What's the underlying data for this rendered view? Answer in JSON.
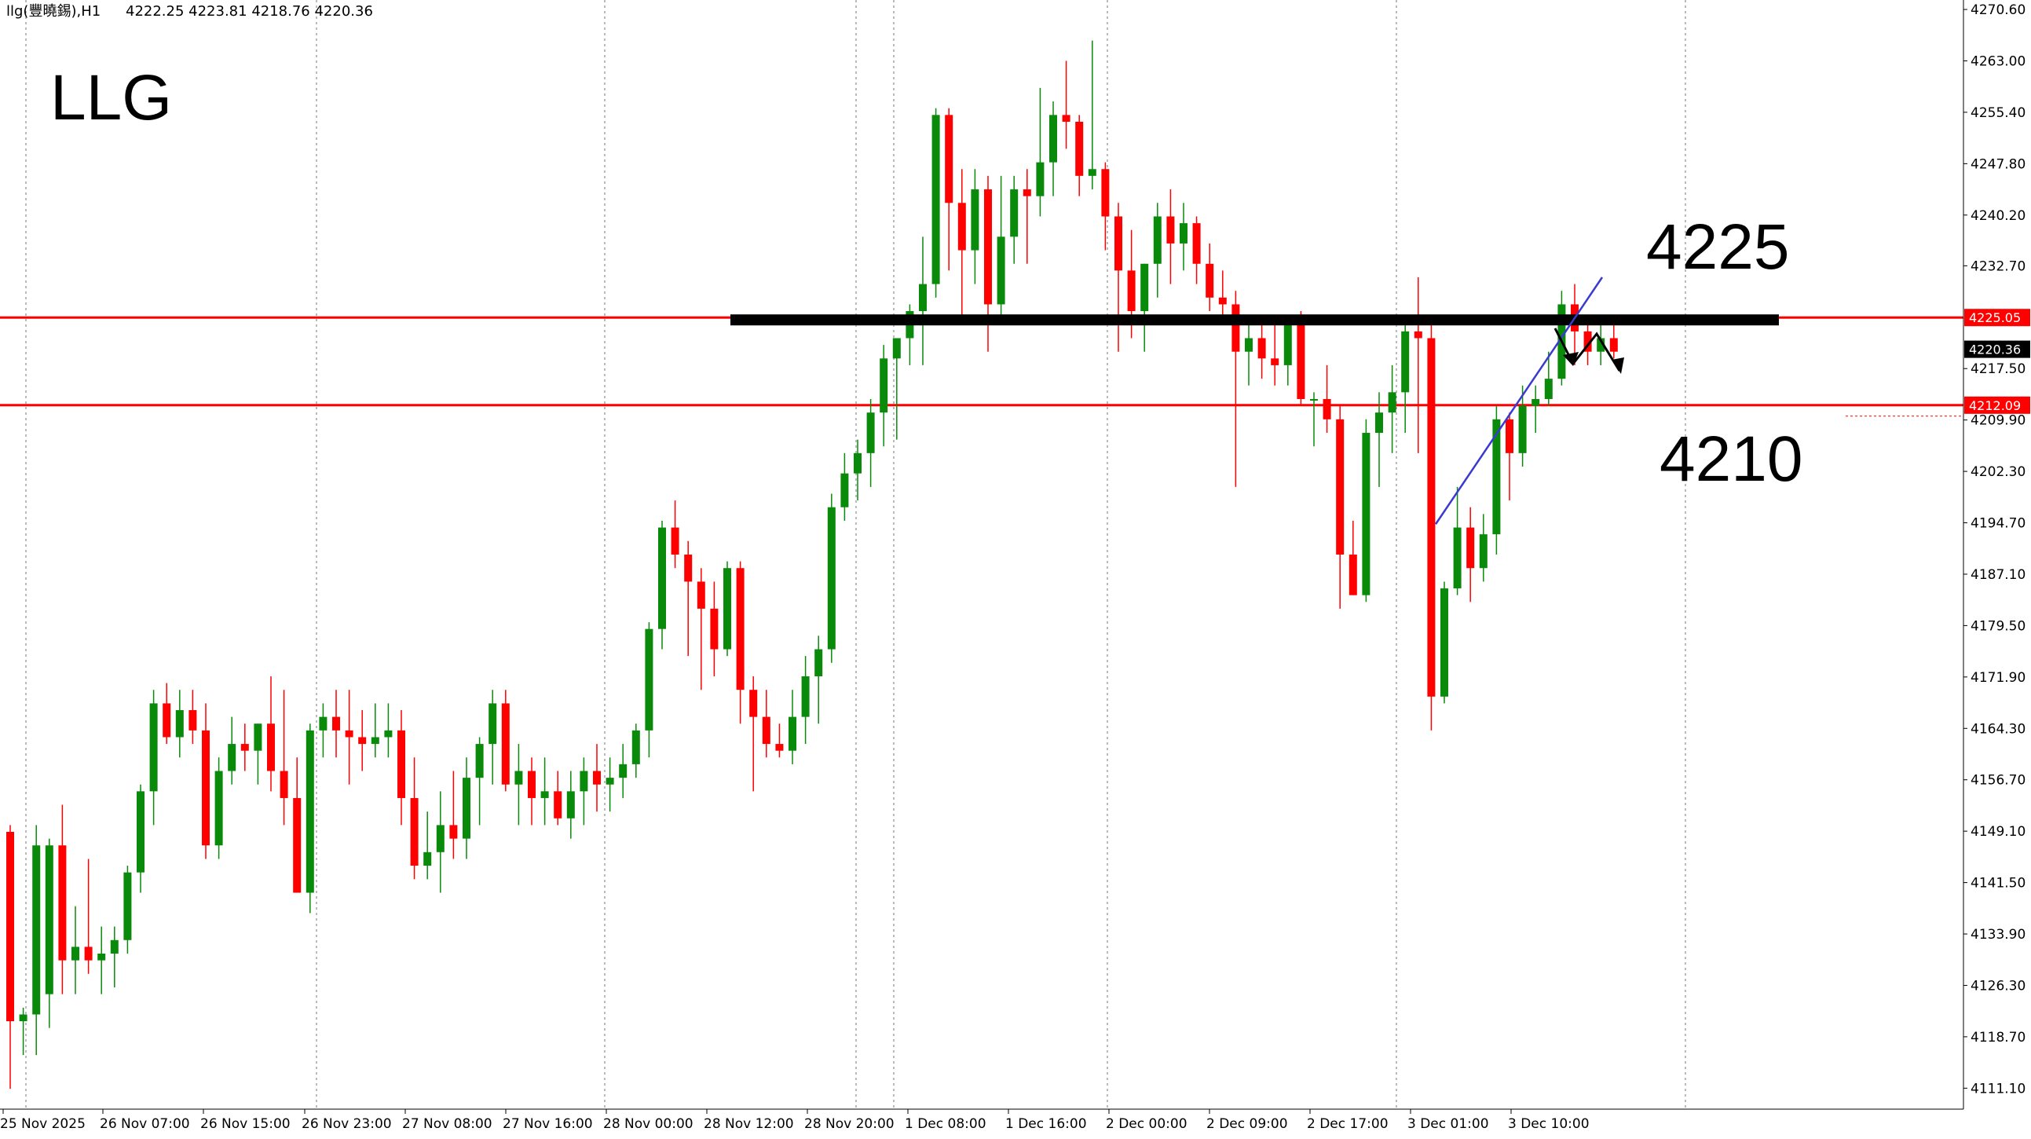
{
  "header": {
    "symbol_info": "llg(豐曉錫),H1",
    "ohlc": "4222.25 4223.81 4218.76 4220.36"
  },
  "watermark_label": "LLG",
  "annotations": {
    "upper_level_label": "4225",
    "lower_level_label": "4210"
  },
  "price_tags": {
    "resistance": "4225.05",
    "current": "4220.36",
    "support": "4212.09"
  },
  "colors": {
    "bull": "#0a8a0a",
    "bear": "#ff0000",
    "level_line": "#ff0000",
    "zone_line": "#000000",
    "trend_line": "#3a3ad0",
    "grid": "#777777"
  },
  "chart_data": {
    "type": "candlestick",
    "timeframe": "H1",
    "ylim": [
      4108.0,
      4272.0
    ],
    "y_ticks": [
      "4270.60",
      "4263.00",
      "4255.40",
      "4247.80",
      "4240.20",
      "4232.70",
      "4225.05",
      "4220.36",
      "4217.50",
      "4212.09",
      "4209.90",
      "4202.30",
      "4194.70",
      "4187.10",
      "4179.50",
      "4171.90",
      "4164.30",
      "4156.70",
      "4149.10",
      "4141.50",
      "4133.90",
      "4126.30",
      "4118.70",
      "4111.10"
    ],
    "x_labels": [
      "25 Nov 2025",
      "26 Nov 07:00",
      "26 Nov 15:00",
      "26 Nov 23:00",
      "27 Nov 08:00",
      "27 Nov 16:00",
      "28 Nov 00:00",
      "28 Nov 12:00",
      "28 Nov 20:00",
      "1 Dec 08:00",
      "1 Dec 16:00",
      "2 Dec 00:00",
      "2 Dec 09:00",
      "2 Dec 17:00",
      "3 Dec 01:00",
      "3 Dec 10:00"
    ],
    "horizontal_levels": [
      4225.05,
      4212.09
    ],
    "resistance_zone": 4224.7,
    "trend_line": {
      "from": 4194.5,
      "to": 4231.0
    },
    "ohlc": [
      [
        4149,
        4150,
        4111,
        4121
      ],
      [
        4121,
        4123,
        4116,
        4122
      ],
      [
        4122,
        4150,
        4116,
        4147
      ],
      [
        4125,
        4148,
        4120,
        4147
      ],
      [
        4147,
        4153,
        4125,
        4130
      ],
      [
        4130,
        4138,
        4125,
        4132
      ],
      [
        4132,
        4145,
        4128,
        4130
      ],
      [
        4130,
        4135,
        4125,
        4131
      ],
      [
        4131,
        4135,
        4126,
        4133
      ],
      [
        4133,
        4144,
        4131,
        4143
      ],
      [
        4143,
        4156,
        4140,
        4155
      ],
      [
        4155,
        4170,
        4150,
        4168
      ],
      [
        4168,
        4171,
        4162,
        4163
      ],
      [
        4163,
        4170,
        4160,
        4167
      ],
      [
        4167,
        4170,
        4162,
        4164
      ],
      [
        4164,
        4168,
        4145,
        4147
      ],
      [
        4147,
        4160,
        4145,
        4158
      ],
      [
        4158,
        4166,
        4156,
        4162
      ],
      [
        4162,
        4165,
        4158,
        4161
      ],
      [
        4161,
        4165,
        4156,
        4165
      ],
      [
        4165,
        4172,
        4155,
        4158
      ],
      [
        4158,
        4170,
        4150,
        4154
      ],
      [
        4154,
        4160,
        4140,
        4140
      ],
      [
        4140,
        4165,
        4137,
        4164
      ],
      [
        4164,
        4168,
        4160,
        4166
      ],
      [
        4166,
        4170,
        4160,
        4164
      ],
      [
        4164,
        4170,
        4156,
        4163
      ],
      [
        4163,
        4167,
        4158,
        4162
      ],
      [
        4162,
        4168,
        4160,
        4163
      ],
      [
        4163,
        4168,
        4160,
        4164
      ],
      [
        4164,
        4167,
        4150,
        4154
      ],
      [
        4154,
        4160,
        4142,
        4144
      ],
      [
        4144,
        4152,
        4142,
        4146
      ],
      [
        4146,
        4155,
        4140,
        4150
      ],
      [
        4150,
        4158,
        4145,
        4148
      ],
      [
        4148,
        4160,
        4145,
        4157
      ],
      [
        4157,
        4163,
        4150,
        4162
      ],
      [
        4162,
        4170,
        4156,
        4168
      ],
      [
        4168,
        4170,
        4155,
        4156
      ],
      [
        4156,
        4162,
        4150,
        4158
      ],
      [
        4158,
        4160,
        4150,
        4154
      ],
      [
        4154,
        4160,
        4150,
        4155
      ],
      [
        4155,
        4158,
        4150,
        4151
      ],
      [
        4151,
        4158,
        4148,
        4155
      ],
      [
        4155,
        4160,
        4150,
        4158
      ],
      [
        4158,
        4162,
        4152,
        4156
      ],
      [
        4156,
        4160,
        4152,
        4157
      ],
      [
        4157,
        4162,
        4154,
        4159
      ],
      [
        4159,
        4165,
        4157,
        4164
      ],
      [
        4164,
        4180,
        4160,
        4179
      ],
      [
        4179,
        4195,
        4176,
        4194
      ],
      [
        4194,
        4198,
        4188,
        4190
      ],
      [
        4190,
        4192,
        4175,
        4186
      ],
      [
        4186,
        4188,
        4170,
        4182
      ],
      [
        4182,
        4186,
        4172,
        4176
      ],
      [
        4176,
        4189,
        4175,
        4188
      ],
      [
        4188,
        4189,
        4165,
        4170
      ],
      [
        4170,
        4172,
        4155,
        4166
      ],
      [
        4166,
        4170,
        4160,
        4162
      ],
      [
        4162,
        4165,
        4160,
        4161
      ],
      [
        4161,
        4170,
        4159,
        4166
      ],
      [
        4166,
        4175,
        4162,
        4172
      ],
      [
        4172,
        4178,
        4165,
        4176
      ],
      [
        4176,
        4199,
        4174,
        4197
      ],
      [
        4197,
        4205,
        4195,
        4202
      ],
      [
        4202,
        4207,
        4198,
        4205
      ],
      [
        4205,
        4213,
        4200,
        4211
      ],
      [
        4211,
        4221,
        4206,
        4219
      ],
      [
        4219,
        4222,
        4207,
        4222
      ],
      [
        4222,
        4227,
        4218,
        4226
      ],
      [
        4226,
        4237,
        4218,
        4230
      ],
      [
        4230,
        4256,
        4228,
        4255
      ],
      [
        4255,
        4256,
        4232,
        4242
      ],
      [
        4242,
        4247,
        4225,
        4235
      ],
      [
        4235,
        4247,
        4230,
        4244
      ],
      [
        4244,
        4246,
        4220,
        4227
      ],
      [
        4227,
        4246,
        4225,
        4237
      ],
      [
        4237,
        4246,
        4233,
        4244
      ],
      [
        4244,
        4247,
        4233,
        4243
      ],
      [
        4243,
        4259,
        4240,
        4248
      ],
      [
        4248,
        4257,
        4243,
        4255
      ],
      [
        4255,
        4263,
        4250,
        4254
      ],
      [
        4254,
        4255,
        4243,
        4246
      ],
      [
        4246,
        4266,
        4244,
        4247
      ],
      [
        4247,
        4248,
        4235,
        4240
      ],
      [
        4240,
        4242,
        4220,
        4232
      ],
      [
        4232,
        4238,
        4222,
        4226
      ],
      [
        4226,
        4233,
        4220,
        4233
      ],
      [
        4233,
        4242,
        4228,
        4240
      ],
      [
        4240,
        4244,
        4230,
        4236
      ],
      [
        4236,
        4242,
        4232,
        4239
      ],
      [
        4239,
        4240,
        4230,
        4233
      ],
      [
        4233,
        4236,
        4226,
        4228
      ],
      [
        4228,
        4232,
        4225,
        4227
      ],
      [
        4227,
        4229,
        4200,
        4220
      ],
      [
        4220,
        4225,
        4215,
        4222
      ],
      [
        4222,
        4225,
        4216,
        4219
      ],
      [
        4219,
        4224,
        4215,
        4218
      ],
      [
        4218,
        4225,
        4215,
        4224
      ],
      [
        4224,
        4226,
        4212,
        4213
      ],
      [
        4213,
        4214,
        4206,
        4213
      ],
      [
        4213,
        4218,
        4208,
        4210
      ],
      [
        4210,
        4212,
        4182,
        4190
      ],
      [
        4190,
        4195,
        4184,
        4184
      ],
      [
        4184,
        4210,
        4183,
        4208
      ],
      [
        4208,
        4214,
        4200,
        4211
      ],
      [
        4211,
        4218,
        4205,
        4214
      ],
      [
        4214,
        4224,
        4208,
        4223
      ],
      [
        4223,
        4231,
        4205,
        4222
      ],
      [
        4222,
        4224,
        4164,
        4169
      ],
      [
        4169,
        4186,
        4168,
        4185
      ],
      [
        4185,
        4200,
        4184,
        4194
      ],
      [
        4194,
        4197,
        4183,
        4188
      ],
      [
        4188,
        4196,
        4186,
        4193
      ],
      [
        4193,
        4212,
        4190,
        4210
      ],
      [
        4210,
        4211,
        4198,
        4205
      ],
      [
        4205,
        4215,
        4203,
        4212
      ],
      [
        4212,
        4215,
        4208,
        4213
      ],
      [
        4213,
        4220,
        4212,
        4216
      ],
      [
        4216,
        4229,
        4215,
        4227
      ],
      [
        4227,
        4230,
        4218,
        4223
      ],
      [
        4223,
        4225,
        4218,
        4220
      ],
      [
        4220,
        4224,
        4218,
        4222
      ],
      [
        4222,
        4224,
        4219,
        4220
      ]
    ]
  }
}
